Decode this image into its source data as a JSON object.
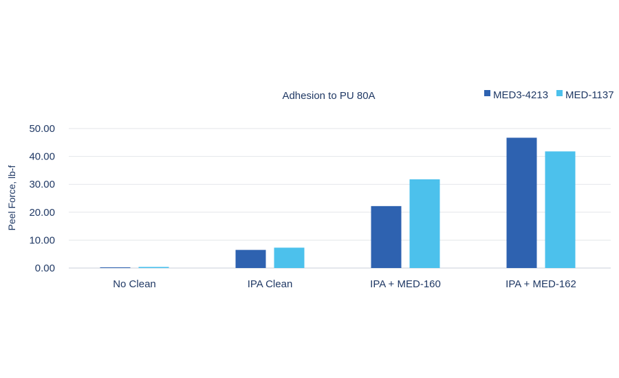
{
  "chart_data": {
    "type": "bar",
    "title": "Adhesion to PU 80A",
    "xlabel": "",
    "ylabel": "Peel Force, lb-f",
    "ylim": [
      0,
      50
    ],
    "yticks": [
      "0.00",
      "10.00",
      "20.00",
      "30.00",
      "40.00",
      "50.00"
    ],
    "categories": [
      "No Clean",
      "IPA Clean",
      "IPA + MED-160",
      "IPA + MED-162"
    ],
    "series": [
      {
        "name": "MED3-4213",
        "color": "#2e62b0",
        "values": [
          0.2,
          6.5,
          22.2,
          46.7
        ]
      },
      {
        "name": "MED-1137",
        "color": "#4cc1ec",
        "values": [
          0.4,
          7.3,
          31.8,
          41.8
        ]
      }
    ],
    "grid": true,
    "legend_position": "top-right"
  }
}
